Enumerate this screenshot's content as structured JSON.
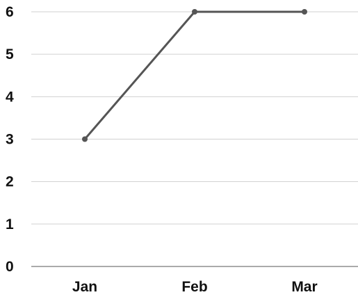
{
  "chart_data": {
    "type": "line",
    "categories": [
      "Jan",
      "Feb",
      "Mar"
    ],
    "series": [
      {
        "values": [
          3,
          6,
          6
        ]
      }
    ],
    "ylim": [
      0,
      6
    ],
    "yticks": [
      "0",
      "1",
      "2",
      "3",
      "4",
      "5",
      "6"
    ],
    "grid": true,
    "legend": "none",
    "line_color": "#555555",
    "grid_color": "#d0d0d0",
    "text_color": "#111111"
  }
}
